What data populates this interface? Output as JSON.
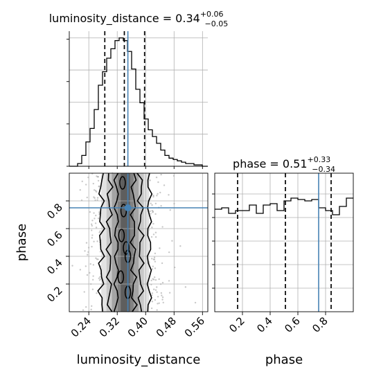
{
  "chart_data": {
    "type": "corner",
    "parameters": [
      "luminosity_distance",
      "phase"
    ],
    "truths": {
      "luminosity_distance": 0.35,
      "phase": 0.75
    },
    "colors": {
      "truth": "#4682b4",
      "hist": "#000000",
      "grid": "#b0b0b0",
      "quantile": "#000000"
    },
    "panels": {
      "lum_hist": {
        "title_main": "luminosity_distance = 0.34",
        "title_plus": "+0.06",
        "title_minus": "−0.05",
        "xlim": [
          0.185,
          0.575
        ],
        "quantiles": [
          0.285,
          0.34,
          0.397
        ],
        "bin_edges": [
          0.185,
          0.1967,
          0.2084,
          0.2201,
          0.2318,
          0.2435,
          0.2552,
          0.2669,
          0.2786,
          0.2903,
          0.302,
          0.3137,
          0.3254,
          0.3371,
          0.3488,
          0.3605,
          0.3722,
          0.3839,
          0.3956,
          0.4073,
          0.419,
          0.4307,
          0.4424,
          0.4541,
          0.4658,
          0.4775,
          0.4892,
          0.5009,
          0.5126,
          0.5243,
          0.536,
          0.5477,
          0.5594,
          0.575
        ],
        "counts": [
          0,
          0,
          0.02,
          0.08,
          0.18,
          0.28,
          0.42,
          0.6,
          0.7,
          0.8,
          0.87,
          0.93,
          0.95,
          0.93,
          0.85,
          0.72,
          0.57,
          0.47,
          0.35,
          0.27,
          0.22,
          0.17,
          0.12,
          0.08,
          0.06,
          0.05,
          0.04,
          0.03,
          0.02,
          0.02,
          0.01,
          0.01,
          0.0
        ]
      },
      "phase_hist": {
        "title_main": "phase = 0.51",
        "title_plus": "+0.33",
        "title_minus": "−0.34",
        "xlim": [
          0.0,
          1.0
        ],
        "quantiles": [
          0.165,
          0.51,
          0.84
        ],
        "bin_edges": [
          0.0,
          0.05,
          0.1,
          0.15,
          0.2,
          0.25,
          0.3,
          0.35,
          0.4,
          0.45,
          0.5,
          0.55,
          0.6,
          0.65,
          0.7,
          0.75,
          0.8,
          0.85,
          0.9,
          0.95,
          1.0
        ],
        "counts": [
          0.74,
          0.75,
          0.71,
          0.73,
          0.73,
          0.77,
          0.71,
          0.77,
          0.78,
          0.73,
          0.8,
          0.82,
          0.81,
          0.8,
          0.81,
          0.75,
          0.73,
          0.7,
          0.76,
          0.82
        ]
      },
      "joint": {
        "xlim": [
          0.185,
          0.575
        ],
        "ylim": [
          0.0,
          1.0
        ],
        "xlabel": "luminosity_distance",
        "ylabel": "phase",
        "xticks": [
          "0.24",
          "0.32",
          "0.40",
          "0.48",
          "0.56"
        ],
        "yticks": [
          "0.2",
          "0.4",
          "0.6",
          "0.8"
        ]
      },
      "phase_axis": {
        "xlabel": "phase",
        "xticks": [
          "0.2",
          "0.4",
          "0.6",
          "0.8"
        ]
      }
    }
  }
}
